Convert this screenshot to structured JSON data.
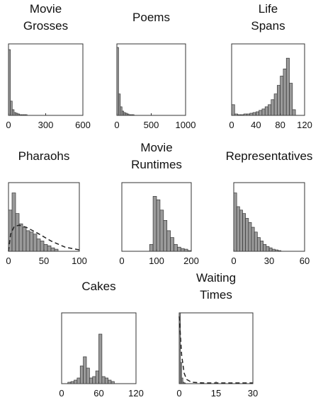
{
  "chart_data": [
    {
      "type": "histogram",
      "title": [
        "Movie",
        "Grosses"
      ],
      "xlim": [
        0,
        600
      ],
      "xticks": [
        0,
        300,
        600
      ],
      "ylim": [
        0,
        100
      ],
      "bins": [
        0,
        15,
        30,
        45,
        60,
        75,
        90,
        105,
        120,
        135,
        150
      ],
      "values": [
        92,
        20,
        8,
        4,
        3,
        2,
        1,
        1,
        1,
        1
      ]
    },
    {
      "type": "histogram",
      "title": [
        "Poems"
      ],
      "xlim": [
        0,
        1000
      ],
      "xticks": [
        0,
        500,
        1000
      ],
      "ylim": [
        0,
        100
      ],
      "bins": [
        0,
        25,
        50,
        75,
        100,
        125,
        150,
        175,
        200,
        225,
        250
      ],
      "values": [
        95,
        30,
        12,
        6,
        4,
        3,
        2,
        1,
        1,
        1
      ]
    },
    {
      "type": "histogram",
      "title": [
        "Life",
        "Spans"
      ],
      "xlim": [
        0,
        120
      ],
      "xticks": [
        0,
        40,
        80,
        120
      ],
      "ylim": [
        0,
        100
      ],
      "bins": [
        0,
        5,
        10,
        15,
        20,
        25,
        30,
        35,
        40,
        45,
        50,
        55,
        60,
        65,
        70,
        75,
        80,
        85,
        90,
        95,
        100,
        105
      ],
      "values": [
        15,
        2,
        1,
        1,
        2,
        2,
        3,
        4,
        5,
        7,
        9,
        12,
        15,
        22,
        30,
        42,
        55,
        65,
        80,
        45,
        8
      ]
    },
    {
      "type": "histogram",
      "title": [
        "Pharaohs"
      ],
      "xlim": [
        0,
        100
      ],
      "xticks": [
        0,
        50,
        100
      ],
      "ylim": [
        0,
        100
      ],
      "bins": [
        0,
        5,
        10,
        15,
        20,
        25,
        30,
        35,
        40,
        45,
        50,
        55,
        60,
        65,
        70
      ],
      "values": [
        60,
        85,
        55,
        40,
        35,
        30,
        28,
        25,
        18,
        15,
        10,
        8,
        5,
        3
      ],
      "curve": {
        "x": [
          0,
          3,
          8,
          15,
          25,
          40,
          60,
          80,
          100
        ],
        "values": [
          0,
          25,
          36,
          38,
          35,
          27,
          15,
          6,
          2
        ]
      }
    },
    {
      "type": "histogram",
      "title": [
        "Movie",
        "Runtimes"
      ],
      "xlim": [
        0,
        200
      ],
      "xticks": [
        0,
        100,
        200
      ],
      "ylim": [
        0,
        100
      ],
      "bins": [
        80,
        90,
        100,
        110,
        120,
        130,
        140,
        150,
        160,
        170,
        180,
        190,
        200
      ],
      "values": [
        10,
        80,
        75,
        60,
        45,
        30,
        20,
        10,
        6,
        4,
        3,
        1
      ]
    },
    {
      "type": "histogram",
      "title": [
        "Representatives"
      ],
      "xlim": [
        0,
        60
      ],
      "xticks": [
        0,
        30,
        60
      ],
      "ylim": [
        0,
        100
      ],
      "bins": [
        0,
        2.5,
        5,
        7.5,
        10,
        12.5,
        15,
        17.5,
        20,
        22.5,
        25,
        27.5,
        30,
        32.5,
        35,
        37.5,
        40
      ],
      "values": [
        85,
        65,
        60,
        55,
        48,
        42,
        35,
        28,
        20,
        15,
        10,
        7,
        5,
        3,
        2,
        1
      ]
    },
    {
      "type": "histogram",
      "title": [
        "Cakes"
      ],
      "xlim": [
        0,
        120
      ],
      "xticks": [
        0,
        60,
        120
      ],
      "ylim": [
        0,
        100
      ],
      "bins": [
        10,
        15,
        20,
        25,
        30,
        35,
        40,
        45,
        50,
        55,
        60,
        65,
        70,
        75,
        80,
        85
      ],
      "values": [
        2,
        3,
        5,
        8,
        25,
        38,
        22,
        8,
        10,
        18,
        70,
        10,
        8,
        5,
        3
      ]
    },
    {
      "type": "histogram",
      "title": [
        "Waiting",
        "Times"
      ],
      "xlim": [
        0,
        30
      ],
      "xticks": [
        0,
        15,
        30
      ],
      "ylim": [
        0,
        100
      ],
      "bins": [
        0,
        0.5,
        1,
        1.5,
        2,
        2.5
      ],
      "values": [
        100,
        30,
        8,
        2,
        1
      ],
      "curve": {
        "x": [
          0,
          1,
          2,
          3,
          5,
          10,
          20,
          30
        ],
        "values": [
          95,
          40,
          15,
          6,
          2,
          1,
          1,
          1
        ]
      }
    }
  ]
}
